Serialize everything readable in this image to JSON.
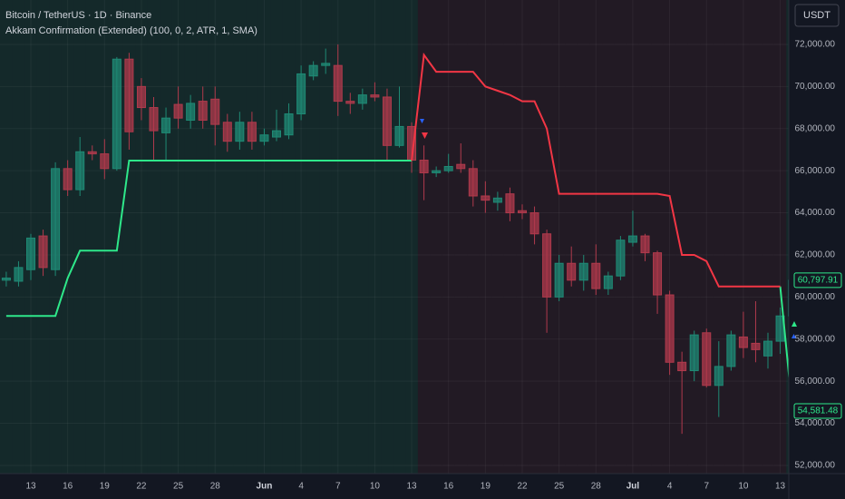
{
  "chart_data": {
    "type": "candlestick",
    "title": "Bitcoin / TetherUS · 1D · Binance",
    "subtitle": "Akkam Confirmation (Extended) (100, 0, 2, ATR, 1, SMA)",
    "currency": "USDT",
    "categories": [
      null,
      null,
      "13",
      null,
      null,
      "16",
      null,
      null,
      "19",
      null,
      null,
      "22",
      null,
      null,
      "25",
      null,
      null,
      "28",
      null,
      null,
      null,
      "Jun",
      null,
      null,
      "4",
      null,
      null,
      "7",
      null,
      null,
      "10",
      null,
      null,
      "13",
      null,
      null,
      "16",
      null,
      null,
      "19",
      null,
      null,
      "22",
      null,
      null,
      "25",
      null,
      null,
      "28",
      null,
      null,
      "Jul",
      null,
      null,
      "4",
      null,
      null,
      "7",
      null,
      null,
      "10",
      null,
      null,
      "13",
      null
    ],
    "open": [
      60800,
      60750,
      61300,
      62900,
      61300,
      66100,
      65100,
      66900,
      66800,
      66100,
      71300,
      70000,
      69000,
      67800,
      69150,
      68400,
      69300,
      69400,
      68300,
      67400,
      68300,
      67400,
      67600,
      67700,
      68700,
      70500,
      71000,
      71000,
      69300,
      69200,
      69600,
      69500,
      67200,
      68100,
      66500,
      65900,
      66000,
      66300,
      66100,
      64800,
      64500,
      64900,
      64100,
      64000,
      63000,
      60000,
      61600,
      60800,
      61600,
      60400,
      61000,
      62600,
      62900,
      62100,
      60100,
      56900,
      56500,
      58300,
      55800,
      56700,
      58100,
      57800,
      57200,
      57900,
      59100
    ],
    "high": [
      61200,
      61700,
      63000,
      63200,
      66400,
      66500,
      67600,
      67200,
      67500,
      71400,
      71600,
      70400,
      69500,
      69000,
      70000,
      69600,
      70000,
      70000,
      68700,
      68800,
      68800,
      68000,
      68900,
      69200,
      71000,
      71200,
      71800,
      72000,
      69700,
      69900,
      70200,
      69900,
      70000,
      68300,
      67200,
      66200,
      66800,
      67300,
      66500,
      65500,
      65000,
      65200,
      64400,
      64300,
      63200,
      62000,
      62400,
      62000,
      62500,
      61200,
      62900,
      64100,
      63000,
      62200,
      60300,
      57400,
      58400,
      58500,
      57900,
      58400,
      59300,
      59800,
      58300,
      59500,
      61200
    ],
    "low": [
      60500,
      60500,
      60800,
      61000,
      61000,
      64800,
      64800,
      66500,
      65600,
      66000,
      67000,
      68400,
      66500,
      66500,
      68000,
      68000,
      68000,
      67200,
      66900,
      67000,
      67000,
      67200,
      67400,
      67500,
      68400,
      70300,
      70600,
      68600,
      68700,
      68900,
      69300,
      66500,
      67100,
      65900,
      64600,
      65700,
      65900,
      65900,
      64300,
      64000,
      64100,
      63600,
      63700,
      62500,
      58300,
      59800,
      60500,
      60300,
      60100,
      60100,
      60800,
      62400,
      61700,
      59200,
      56300,
      53500,
      56000,
      55700,
      54300,
      56500,
      57100,
      56900,
      56600,
      57300,
      58900
    ],
    "close": [
      60900,
      61400,
      62800,
      61400,
      66100,
      65100,
      66900,
      66800,
      66100,
      71300,
      67850,
      69000,
      67900,
      68500,
      68500,
      69200,
      68400,
      68200,
      67400,
      68300,
      67400,
      67700,
      67900,
      68700,
      70600,
      71000,
      71100,
      69300,
      69200,
      69600,
      69500,
      67200,
      68100,
      66500,
      65900,
      66000,
      66200,
      66100,
      64800,
      64600,
      64700,
      64000,
      64000,
      63000,
      60000,
      61600,
      60800,
      61600,
      60400,
      61000,
      62700,
      62900,
      62100,
      60100,
      56900,
      56500,
      58200,
      55800,
      56700,
      58200,
      57600,
      57500,
      57900,
      59100,
      60797.91
    ],
    "close_label": "60,797.91",
    "up_color": "#1f8a75",
    "down_color": "#b03a4c",
    "series": [
      {
        "color": "#2ee88a",
        "last_label": "54,581.48",
        "values": [
          59100,
          59100,
          59100,
          59100,
          59100,
          60900,
          62200,
          62200,
          62200,
          62200,
          66480,
          66480,
          66480,
          66480,
          66480,
          66480,
          66480,
          66480,
          66480,
          66480,
          66480,
          66480,
          66480,
          66480,
          66480,
          66480,
          66480,
          66480,
          66480,
          66480,
          66480,
          66480,
          66480,
          66480,
          null,
          null,
          null,
          null,
          null,
          null,
          null,
          null,
          null,
          null,
          null,
          null,
          null,
          null,
          null,
          null,
          null,
          null,
          null,
          null,
          null,
          null,
          null,
          null,
          null,
          null,
          null,
          null,
          null,
          60500,
          54581.48
        ]
      },
      {
        "color": "#f23645",
        "values": [
          null,
          null,
          null,
          null,
          null,
          null,
          null,
          null,
          null,
          null,
          null,
          null,
          null,
          null,
          null,
          null,
          null,
          null,
          null,
          null,
          null,
          null,
          null,
          null,
          null,
          null,
          null,
          null,
          null,
          null,
          null,
          null,
          null,
          66480,
          71500,
          70700,
          70700,
          70700,
          70700,
          70000,
          69800,
          69600,
          69300,
          69300,
          68000,
          64900,
          64900,
          64900,
          64900,
          64900,
          64900,
          64900,
          64900,
          64900,
          64800,
          62000,
          62000,
          61700,
          60500,
          60500,
          60500,
          60500,
          60500,
          60500,
          null
        ]
      }
    ],
    "ylim": [
      51610,
      74110
    ],
    "yticks": [
      {
        "value": 52000,
        "label": "52,000.00"
      },
      {
        "value": 54000,
        "label": "54,000.00"
      },
      {
        "value": 56000,
        "label": "56,000.00"
      },
      {
        "value": 58000,
        "label": "58,000.00"
      },
      {
        "value": 60000,
        "label": "60,000.00"
      },
      {
        "value": 62000,
        "label": "62,000.00"
      },
      {
        "value": 64000,
        "label": "64,000.00"
      },
      {
        "value": 66000,
        "label": "66,000.00"
      },
      {
        "value": 68000,
        "label": "68,000.00"
      },
      {
        "value": 70000,
        "label": "70,000.00"
      },
      {
        "value": 72000,
        "label": "72,000.00"
      }
    ],
    "grid": true
  }
}
